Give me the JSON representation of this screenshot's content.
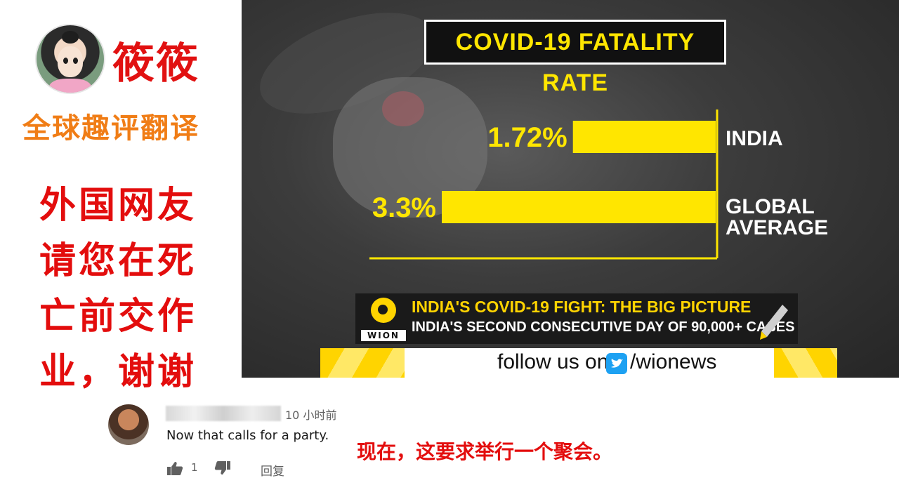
{
  "left_panel": {
    "channel_name": "筱筱",
    "channel_subtitle": "全球趣评翻译",
    "headline_lines": [
      "外国网友",
      "请您在死",
      "亡前交作",
      "业，谢谢"
    ]
  },
  "video": {
    "chart_title": "COVID-19 FATALITY RATE",
    "ticker_headline": "INDIA'S COVID-19 FIGHT: THE BIG PICTURE",
    "ticker_subline": "INDIA'S SECOND CONSECUTIVE DAY OF 90,000+ CASES",
    "logo_text": "WION",
    "follow_prefix": "follow us on",
    "follow_handle": "/wionews"
  },
  "chart_data": {
    "type": "bar",
    "orientation": "horizontal",
    "title": "COVID-19 FATALITY RATE",
    "categories": [
      "INDIA",
      "GLOBAL AVERAGE"
    ],
    "category_label_lines": [
      [
        "INDIA"
      ],
      [
        "GLOBAL",
        "AVERAGE"
      ]
    ],
    "values": [
      1.72,
      3.3
    ],
    "value_labels": [
      "1.72%",
      "3.3%"
    ],
    "unit": "%",
    "bar_color": "#ffe600",
    "xlim": [
      0,
      3.3
    ],
    "grid": false,
    "legend": "none"
  },
  "comment": {
    "time": "10 小时前",
    "text": "Now that calls for a party.",
    "translation": "现在，这要求举行一个聚会。",
    "like_count": "1",
    "reply_label": "回复"
  },
  "colors": {
    "headline_red": "#e30d0d",
    "subtitle_orange": "#f07d16",
    "chart_yellow": "#ffe600",
    "wion_yellow": "#ffd400"
  }
}
